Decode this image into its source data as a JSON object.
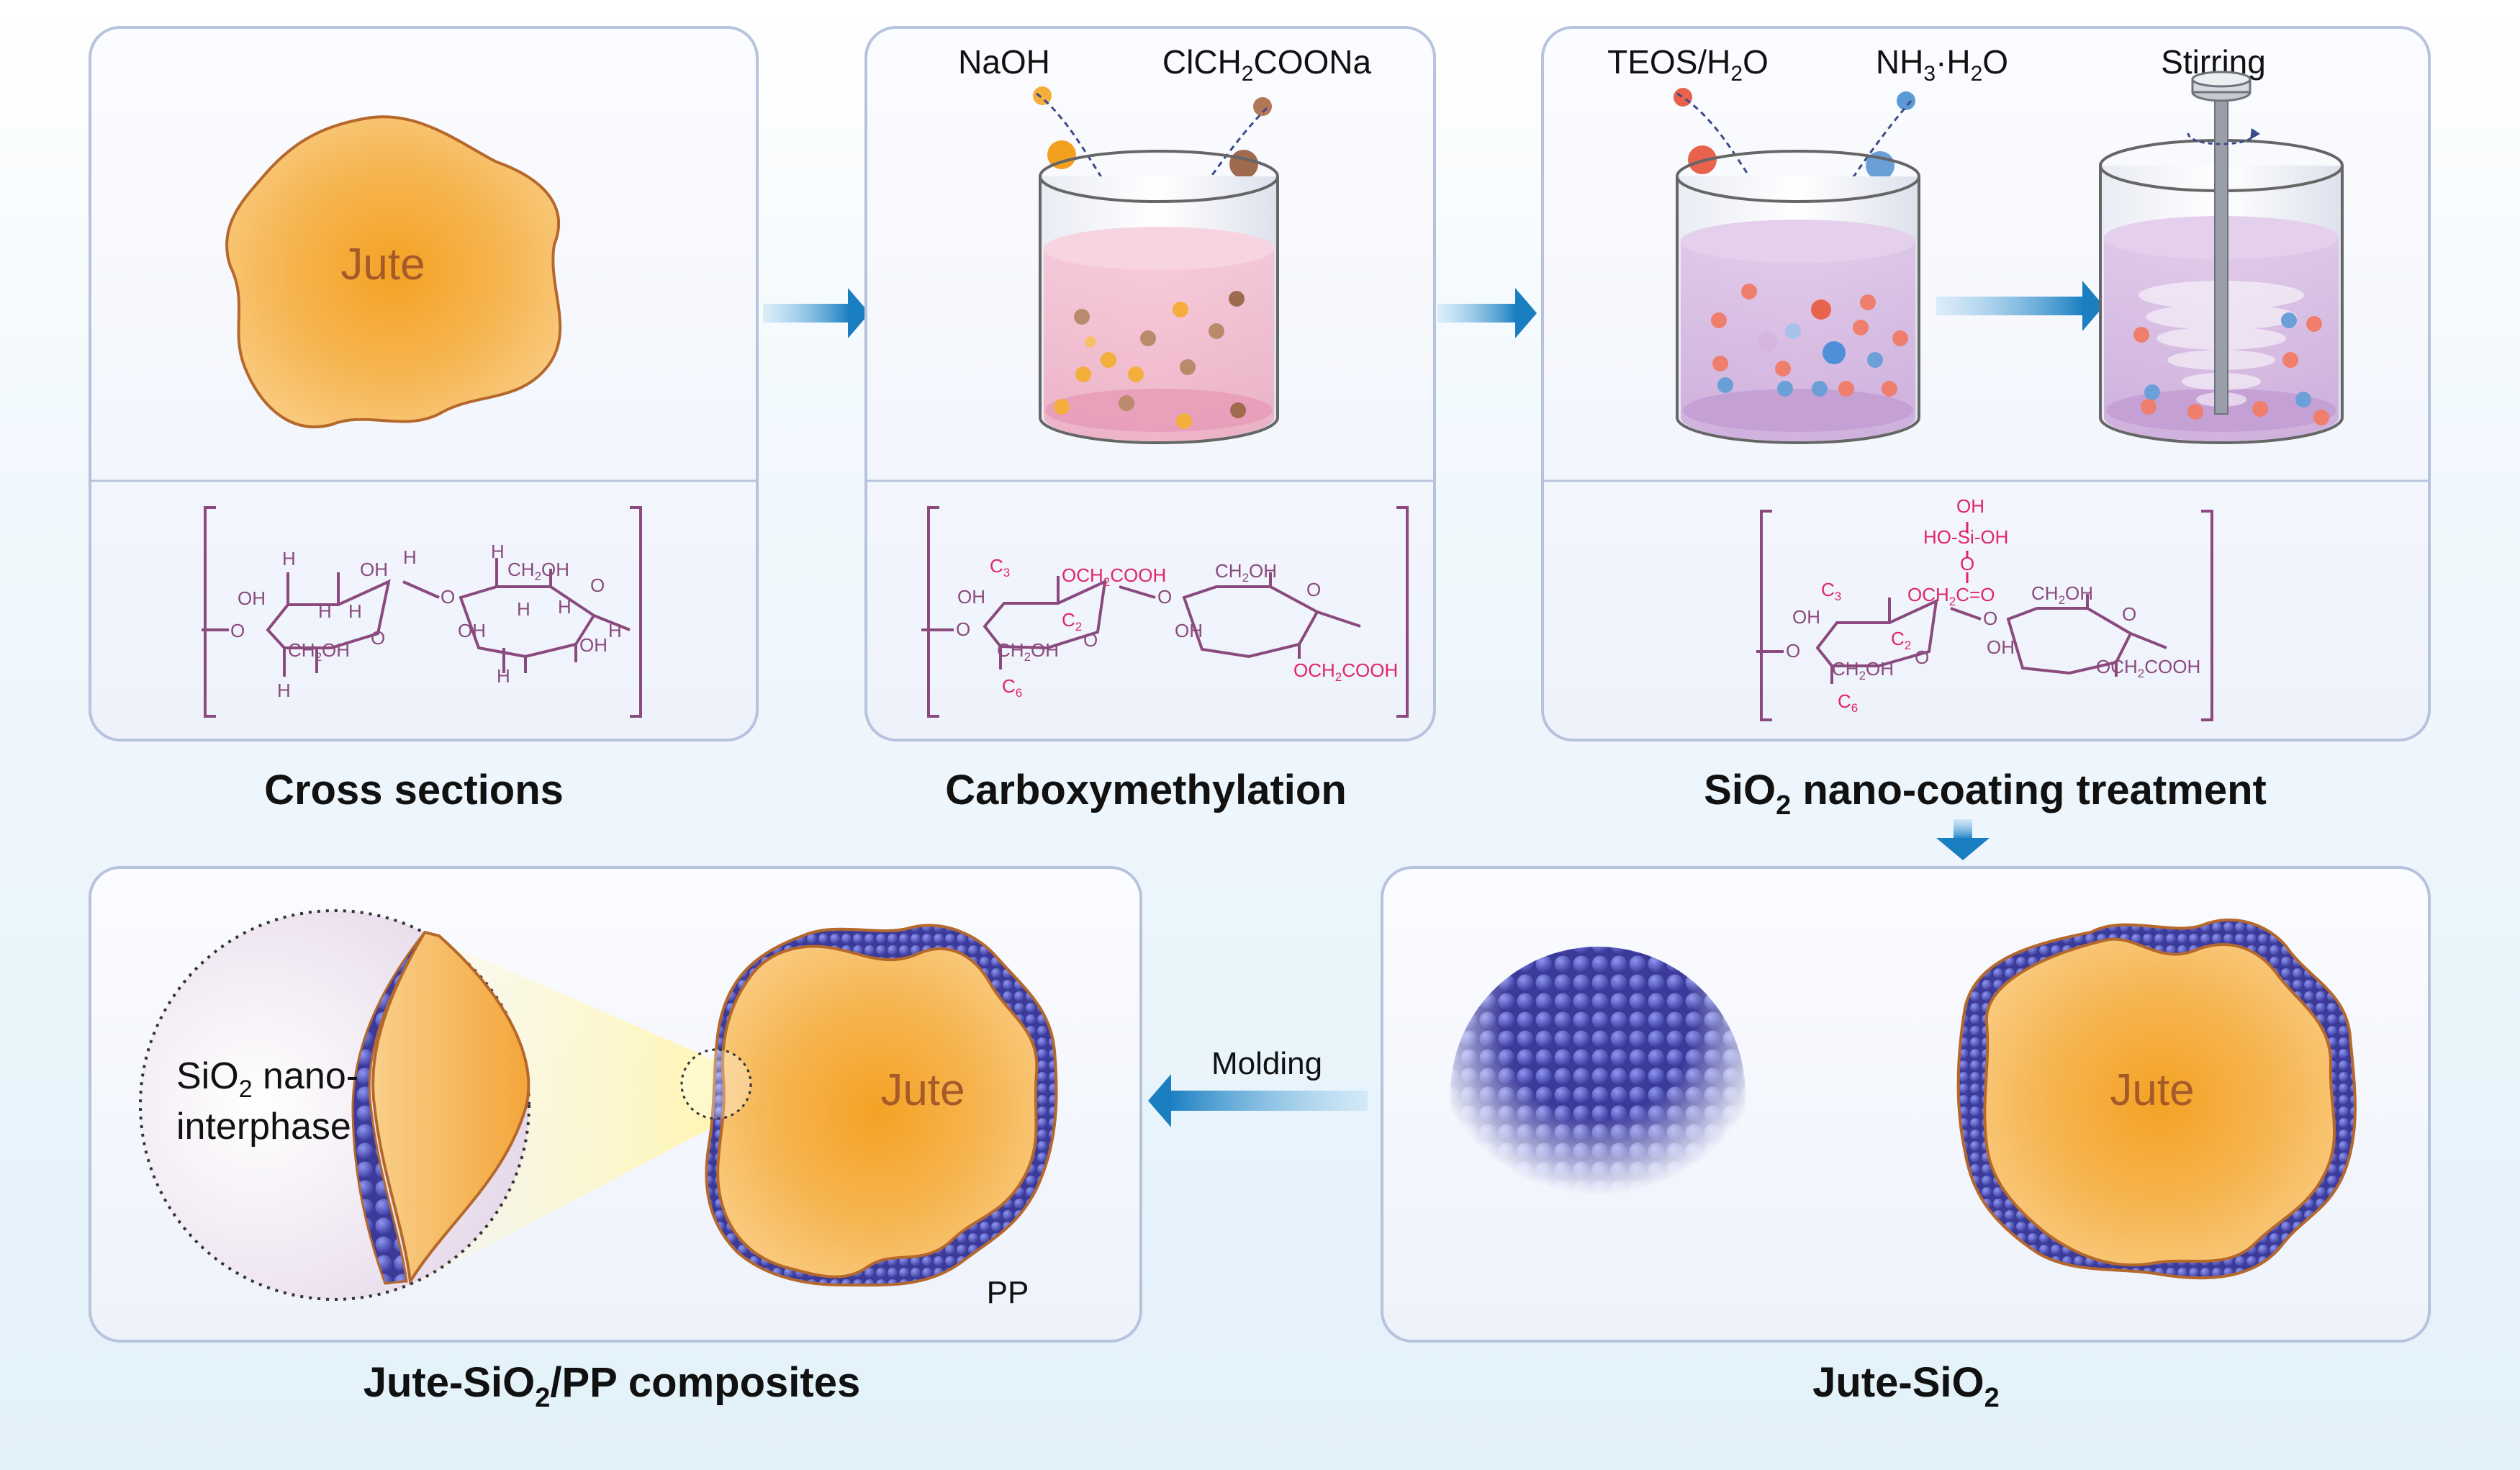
{
  "panels": {
    "cross_sections": {
      "caption": "Cross sections",
      "fiber_label": "Jute"
    },
    "carboxymethylation": {
      "caption": "Carboxymethylation",
      "reagent_1": "NaOH",
      "reagent_2_main": "ClCH",
      "reagent_2_sub": "2",
      "reagent_2_tail": "COONa"
    },
    "sio2_coating": {
      "caption_main": "SiO",
      "caption_sub": "2",
      "caption_tail": " nano-coating treatment",
      "reagent_1_main": "TEOS/H",
      "reagent_1_sub": "2",
      "reagent_1_tail": "O",
      "reagent_2_a": "NH",
      "reagent_2_sub1": "3",
      "reagent_2_b": "·H",
      "reagent_2_sub2": "2",
      "reagent_2_c": "O",
      "stirring": "Stirring"
    },
    "jute_sio2": {
      "caption_main": "Jute-SiO",
      "caption_sub": "2",
      "fiber_label": "Jute"
    },
    "composites": {
      "caption_main": "Jute-SiO",
      "caption_sub": "2",
      "caption_tail": "/PP composites",
      "fiber_label": "Jute",
      "pp_label": "PP",
      "zoom_line1_main": "SiO",
      "zoom_line1_sub": "2",
      "zoom_line1_tail": " nano-",
      "zoom_line2": "interphase"
    }
  },
  "molding_label": "Molding",
  "chem": {
    "cellulose": {
      "h": "H",
      "oh": "OH",
      "o": "O",
      "ch2oh_a": "CH",
      "ch2oh_sub": "2",
      "ch2oh_b": "OH"
    },
    "cmc": {
      "c3": "C",
      "c3_sub": "3",
      "c2": "C",
      "c2_sub": "2",
      "c6": "C",
      "c6_sub": "6",
      "och2cooh_a": "OCH",
      "och2cooh_sub": "2",
      "och2cooh_b": "COOH",
      "oh": "OH",
      "o": "O",
      "ch2oh_a": "CH",
      "ch2oh_sub": "2",
      "ch2oh_b": "OH"
    },
    "silica": {
      "oh": "OH",
      "hosioh": "HO-Si-OH",
      "o": "O",
      "och2co_a": "OCH",
      "och2co_sub": "2",
      "och2co_b": "C=O"
    }
  },
  "colors": {
    "background": "#eaf4fb",
    "panel_fill": "#f6f9fe",
    "panel_border": "#b7c3dd",
    "arrow_blue": "#1a7fc1",
    "jute_orange": "#f2a93a",
    "jute_outline": "#b5682c",
    "chem_purple": "#8a4a7d",
    "chem_pink": "#e0246b",
    "silica_blue": "#5b5fc6"
  }
}
